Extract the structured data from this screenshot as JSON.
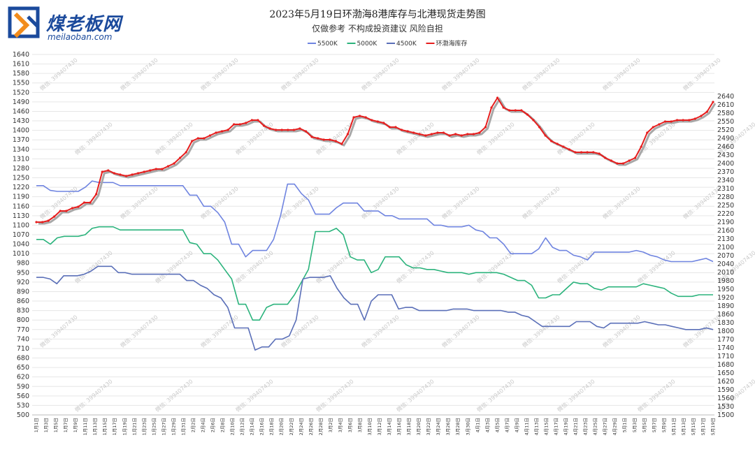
{
  "logo": {
    "name": "煤老板网",
    "url": "meilaoban.com",
    "icon": "brand-logo-icon"
  },
  "chart_data": {
    "type": "line",
    "title": "2023年5月19日环渤海8港库存与北港现货走势图",
    "subtitle": "仅做参考 不构成投资建议 风险自担",
    "legend_placement": "top-center",
    "grid": "horizontal",
    "left_axis": {
      "min": 500,
      "max": 1640,
      "step": 30
    },
    "right_axis": {
      "min": 1500,
      "max": 2790,
      "step": 30
    },
    "watermark": "微信: 399407430",
    "x_ticks": [
      "1月1日",
      "1月3日",
      "1月5日",
      "1月7日",
      "1月9日",
      "1月11日",
      "1月13日",
      "1月15日",
      "1月17日",
      "1月19日",
      "1月21日",
      "1月23日",
      "1月25日",
      "1月27日",
      "1月29日",
      "1月31日",
      "2月2日",
      "2月4日",
      "2月6日",
      "2月8日",
      "2月10日",
      "2月12日",
      "2月14日",
      "2月16日",
      "2月18日",
      "2月20日",
      "2月22日",
      "2月24日",
      "2月26日",
      "2月28日",
      "3月2日",
      "3月4日",
      "3月6日",
      "3月8日",
      "3月10日",
      "3月12日",
      "3月14日",
      "3月16日",
      "3月18日",
      "3月20日",
      "3月22日",
      "3月24日",
      "3月26日",
      "3月28日",
      "3月30日",
      "4月1日",
      "4月3日",
      "4月5日",
      "4月7日",
      "4月9日",
      "4月11日",
      "4月13日",
      "4月15日",
      "4月17日",
      "4月19日",
      "4月21日",
      "4月23日",
      "4月25日",
      "4月27日",
      "4月29日",
      "5月1日",
      "5月3日",
      "5月5日",
      "5月7日",
      "5月9日",
      "5月11日",
      "5月13日",
      "5月15日",
      "5月17日",
      "5月19日"
    ],
    "series": [
      {
        "name": "5500K",
        "axis": "left",
        "color": "#6f84e0",
        "values": [
          1225,
          1225,
          1210,
          1207,
          1207,
          1207,
          1207,
          1220,
          1240,
          1235,
          1235,
          1235,
          1225,
          1225,
          1225,
          1225,
          1225,
          1225,
          1225,
          1225,
          1225,
          1225,
          1195,
          1195,
          1160,
          1160,
          1140,
          1110,
          1040,
          1040,
          1000,
          1020,
          1020,
          1020,
          1055,
          1130,
          1230,
          1230,
          1200,
          1180,
          1135,
          1135,
          1135,
          1155,
          1170,
          1170,
          1170,
          1145,
          1145,
          1145,
          1130,
          1130,
          1120,
          1120,
          1120,
          1120,
          1120,
          1100,
          1100,
          1095,
          1095,
          1095,
          1100,
          1085,
          1080,
          1060,
          1060,
          1040,
          1010,
          1010,
          1010,
          1010,
          1025,
          1060,
          1030,
          1020,
          1020,
          1005,
          1000,
          990,
          1015,
          1015,
          1015,
          1015,
          1015,
          1015,
          1020,
          1015,
          1005,
          1000,
          990,
          985,
          985,
          985,
          985,
          990,
          995,
          985
        ]
      },
      {
        "name": "5000K",
        "axis": "left",
        "color": "#2bb37c",
        "values": [
          1055,
          1055,
          1040,
          1060,
          1065,
          1065,
          1065,
          1070,
          1090,
          1095,
          1095,
          1095,
          1085,
          1085,
          1085,
          1085,
          1085,
          1085,
          1085,
          1085,
          1085,
          1085,
          1045,
          1040,
          1010,
          1010,
          990,
          960,
          930,
          850,
          850,
          800,
          800,
          840,
          850,
          850,
          850,
          880,
          920,
          960,
          1080,
          1080,
          1080,
          1090,
          1070,
          1000,
          990,
          990,
          950,
          960,
          1000,
          1000,
          1000,
          975,
          965,
          965,
          960,
          960,
          955,
          950,
          950,
          950,
          945,
          950,
          950,
          950,
          950,
          945,
          935,
          925,
          925,
          910,
          870,
          870,
          880,
          880,
          900,
          920,
          915,
          915,
          900,
          895,
          905,
          905,
          905,
          905,
          905,
          915,
          910,
          905,
          900,
          885,
          875,
          875,
          875,
          880,
          880,
          880
        ]
      },
      {
        "name": "4500K",
        "axis": "left",
        "color": "#5a6fb8",
        "values": [
          935,
          935,
          930,
          915,
          940,
          940,
          940,
          945,
          955,
          970,
          970,
          970,
          950,
          950,
          945,
          945,
          945,
          945,
          945,
          945,
          945,
          945,
          925,
          925,
          910,
          900,
          880,
          870,
          840,
          775,
          775,
          775,
          705,
          715,
          715,
          740,
          740,
          750,
          800,
          930,
          935,
          935,
          935,
          940,
          900,
          870,
          850,
          850,
          800,
          860,
          880,
          880,
          880,
          835,
          840,
          840,
          830,
          830,
          830,
          830,
          830,
          835,
          835,
          835,
          830,
          830,
          830,
          830,
          830,
          825,
          825,
          815,
          810,
          795,
          780,
          780,
          780,
          780,
          780,
          795,
          795,
          795,
          780,
          775,
          790,
          790,
          790,
          790,
          790,
          795,
          790,
          785,
          785,
          780,
          775,
          770,
          770,
          770,
          775,
          770
        ]
      },
      {
        "name": "环渤海库存",
        "axis": "right",
        "color": "#e61e1e",
        "values": [
          2190,
          2190,
          2195,
          2210,
          2230,
          2230,
          2240,
          2245,
          2260,
          2260,
          2290,
          2370,
          2375,
          2365,
          2360,
          2355,
          2360,
          2365,
          2370,
          2375,
          2380,
          2380,
          2390,
          2400,
          2420,
          2440,
          2480,
          2490,
          2490,
          2500,
          2510,
          2515,
          2520,
          2540,
          2540,
          2545,
          2555,
          2555,
          2535,
          2525,
          2520,
          2520,
          2520,
          2520,
          2525,
          2515,
          2495,
          2490,
          2485,
          2485,
          2480,
          2470,
          2505,
          2565,
          2570,
          2565,
          2555,
          2550,
          2545,
          2530,
          2530,
          2520,
          2515,
          2510,
          2505,
          2500,
          2505,
          2510,
          2510,
          2500,
          2505,
          2500,
          2505,
          2505,
          2510,
          2530,
          2600,
          2635,
          2600,
          2590,
          2590,
          2590,
          2575,
          2555,
          2530,
          2500,
          2480,
          2470,
          2460,
          2450,
          2440,
          2440,
          2440,
          2440,
          2435,
          2420,
          2410,
          2400,
          2400,
          2410,
          2420,
          2460,
          2510,
          2530,
          2540,
          2550,
          2550,
          2555,
          2555,
          2555,
          2560,
          2570,
          2585,
          2620
        ]
      }
    ]
  }
}
